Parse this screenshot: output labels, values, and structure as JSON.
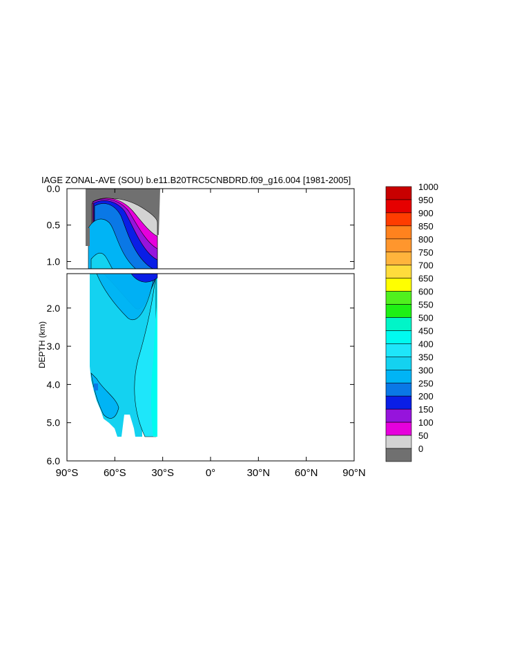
{
  "chart_data": {
    "type": "heatmap",
    "title": "IAGE ZONAL-AVE (SOU) b.e11.B20TRC5CNBDRD.f09_g16.004 [1981-2005]",
    "ylabel": "DEPTH (km)",
    "xlabel": "",
    "x_range": [
      -90,
      90
    ],
    "x_ticks": [
      {
        "value": -90,
        "label": "90°S"
      },
      {
        "value": -60,
        "label": "60°S"
      },
      {
        "value": -30,
        "label": "30°S"
      },
      {
        "value": 0,
        "label": "0°"
      },
      {
        "value": 30,
        "label": "30°N"
      },
      {
        "value": 60,
        "label": "60°N"
      },
      {
        "value": 90,
        "label": "90°N"
      }
    ],
    "upper_panel": {
      "depth_range": [
        0,
        1.1
      ],
      "y_ticks": [
        "0.0",
        "0.5",
        "1.0"
      ]
    },
    "lower_panel": {
      "depth_range": [
        1.1,
        6.0
      ],
      "y_ticks": [
        "2.0",
        "3.0",
        "4.0",
        "5.0",
        "6.0"
      ]
    },
    "colorbar": {
      "levels": [
        0,
        50,
        100,
        150,
        200,
        250,
        300,
        350,
        400,
        450,
        500,
        550,
        600,
        650,
        700,
        750,
        800,
        850,
        900,
        950,
        1000
      ],
      "colors": [
        "#707070",
        "#d3d3d3",
        "#e600dc",
        "#9614dc",
        "#0a1ee6",
        "#0a78e6",
        "#00b4f5",
        "#14d2f0",
        "#1ee6fa",
        "#00faf0",
        "#00f5c8",
        "#1ef014",
        "#50f01e",
        "#ffff00",
        "#ffdc3c",
        "#ffb43c",
        "#ff962d",
        "#ff821e",
        "#ff3c00",
        "#e60000",
        "#c80000"
      ],
      "placement": "right"
    },
    "data_extent": {
      "lat_range": [
        -77,
        -35
      ],
      "max_depth_km": 5.4,
      "description_levels_present": [
        0,
        50,
        100,
        150,
        200,
        250,
        300,
        350,
        400,
        450
      ]
    }
  }
}
